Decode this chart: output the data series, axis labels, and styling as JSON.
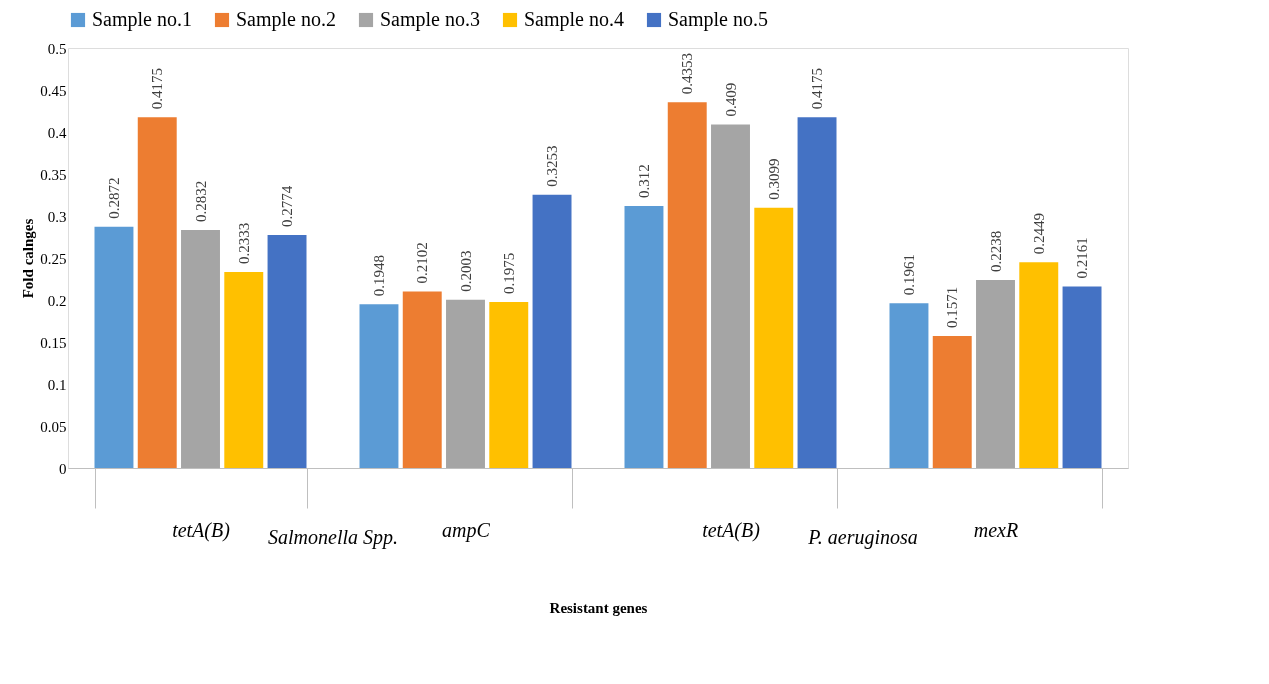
{
  "chart_data": {
    "type": "bar",
    "xlabel": "Resistant genes",
    "ylabel": "Fold calnges",
    "categories": [
      "tetA(B)",
      "ampC",
      "tetA(B)",
      "mexR"
    ],
    "annotations": [
      "Salmonella Spp.",
      "P. aeruginosa"
    ],
    "series": [
      {
        "name": "Sample no.1",
        "color": "#5b9bd5",
        "values": [
          0.2872,
          0.1948,
          0.312,
          0.1961
        ]
      },
      {
        "name": "Sample no.2",
        "color": "#ed7d31",
        "values": [
          0.4175,
          0.2102,
          0.4353,
          0.1571
        ]
      },
      {
        "name": "Sample no.3",
        "color": "#a5a5a5",
        "values": [
          0.2832,
          0.2003,
          0.409,
          0.2238
        ]
      },
      {
        "name": "Sample no.4",
        "color": "#ffc000",
        "values": [
          0.2333,
          0.1975,
          0.3099,
          0.2449
        ]
      },
      {
        "name": "Sample no.5",
        "color": "#4472c4",
        "values": [
          0.2774,
          0.3253,
          0.4175,
          0.2161
        ]
      }
    ],
    "ylim": [
      0,
      0.5
    ],
    "yticks": [
      0,
      0.05,
      0.1,
      0.15,
      0.2,
      0.25,
      0.3,
      0.35,
      0.4,
      0.45,
      0.5
    ],
    "data_labels": true,
    "grid": false,
    "legend": "top"
  }
}
